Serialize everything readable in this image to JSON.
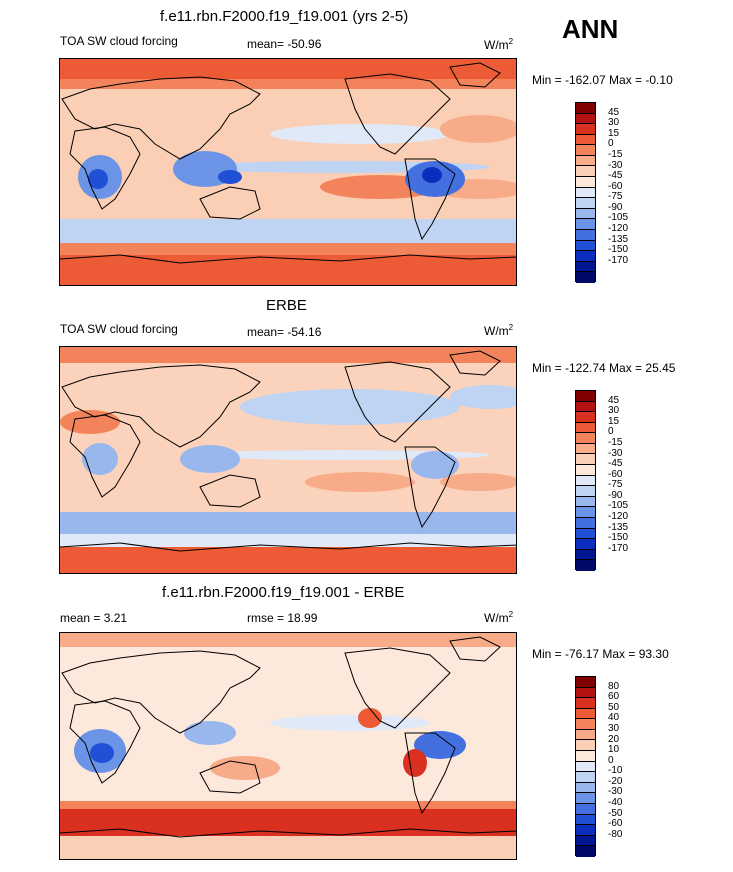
{
  "annual_label": "ANN",
  "colors": {
    "panel_a": [
      "#7f0000",
      "#b31212",
      "#d9301f",
      "#ec5a36",
      "#f3835a",
      "#f8ab88",
      "#fbcfb6",
      "#fde8dc",
      "#dfe9f7",
      "#bfd3f2",
      "#98b7ed",
      "#6b94e6",
      "#4370de",
      "#2050d6",
      "#0b2ebf",
      "#001794",
      "#000a66"
    ],
    "panel_c": [
      "#7f0000",
      "#b31212",
      "#d9301f",
      "#ec5a36",
      "#f3835a",
      "#f8ab88",
      "#fbcfb6",
      "#fde8dc",
      "#dfe9f7",
      "#bfd3f2",
      "#98b7ed",
      "#6b94e6",
      "#4370de",
      "#2050d6",
      "#0b2ebf",
      "#001794",
      "#000a66"
    ]
  },
  "chart_data": [
    {
      "type": "heatmap",
      "title": "f.e11.rbn.F2000.f19_f19.001 (yrs 2-5)",
      "left_label": "TOA SW cloud forcing",
      "center_label": "mean= -50.96",
      "units_text": "W/m",
      "units_exp": "2",
      "minmax": "Min = -162.07 Max =  -0.10",
      "mean": -50.96,
      "min": -162.07,
      "max": -0.1,
      "levels": [
        "45",
        "30",
        "15",
        "0",
        "-15",
        "-30",
        "-45",
        "-60",
        "-75",
        "-90",
        "-105",
        "-120",
        "-135",
        "-150",
        "-170"
      ],
      "base": "#fbcfb6"
    },
    {
      "type": "heatmap",
      "title": "ERBE",
      "left_label": "TOA SW cloud forcing",
      "center_label": "mean= -54.16",
      "units_text": "W/m",
      "units_exp": "2",
      "minmax": "Min = -122.74 Max =  25.45",
      "mean": -54.16,
      "min": -122.74,
      "max": 25.45,
      "levels": [
        "45",
        "30",
        "15",
        "0",
        "-15",
        "-30",
        "-45",
        "-60",
        "-75",
        "-90",
        "-105",
        "-120",
        "-135",
        "-150",
        "-170"
      ],
      "base": "#fbd3bd"
    },
    {
      "type": "heatmap",
      "title": "f.e11.rbn.F2000.f19_f19.001 - ERBE",
      "left_label": "mean =   3.21",
      "center_label": "rmse =  18.99",
      "units_text": "W/m",
      "units_exp": "2",
      "minmax": "Min = -76.17 Max =  93.30",
      "mean": 3.21,
      "rmse": 18.99,
      "min": -76.17,
      "max": 93.3,
      "levels": [
        "80",
        "60",
        "50",
        "40",
        "30",
        "20",
        "10",
        "0",
        "-10",
        "-20",
        "-30",
        "-40",
        "-50",
        "-60",
        "-80"
      ],
      "base": "#fde8dc"
    }
  ]
}
